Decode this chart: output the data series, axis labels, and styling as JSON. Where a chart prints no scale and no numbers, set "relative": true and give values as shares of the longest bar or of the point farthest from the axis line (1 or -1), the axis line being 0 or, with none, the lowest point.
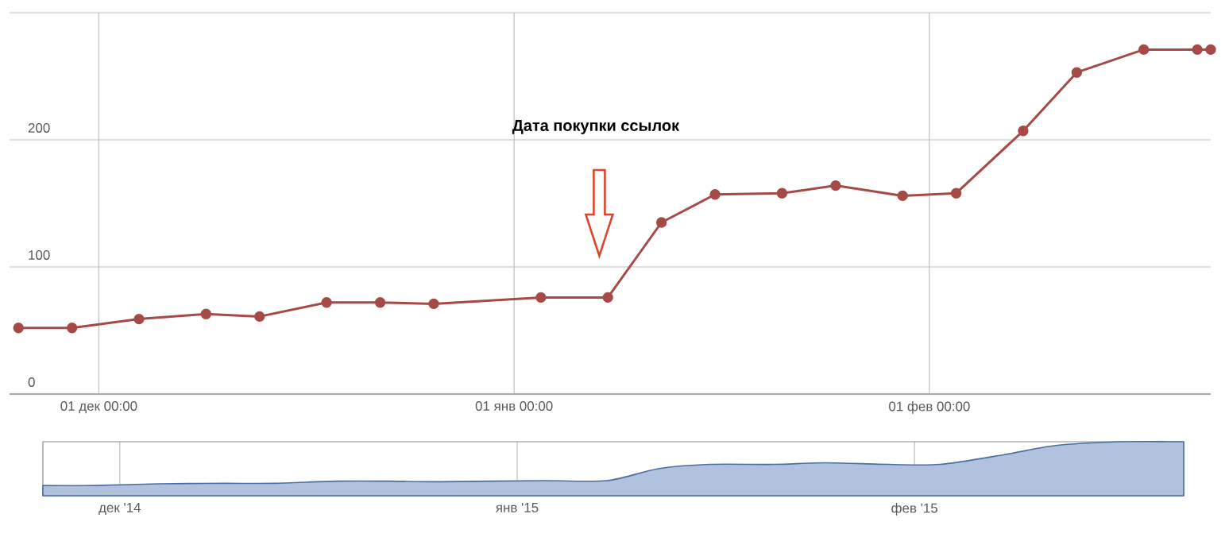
{
  "chart_data": [
    {
      "type": "line",
      "color": "#a54a46",
      "marker": "circle",
      "grid": true,
      "x": [
        "2014-11-25",
        "2014-11-29",
        "2014-12-04",
        "2014-12-09",
        "2014-12-13",
        "2014-12-18",
        "2014-12-22",
        "2014-12-26",
        "2015-01-03",
        "2015-01-08",
        "2015-01-12",
        "2015-01-16",
        "2015-01-21",
        "2015-01-25",
        "2015-01-30",
        "2015-02-03",
        "2015-02-08",
        "2015-02-12",
        "2015-02-17",
        "2015-02-21",
        "2015-02-22"
      ],
      "values": [
        52,
        52,
        59,
        63,
        61,
        72,
        72,
        71,
        76,
        76,
        135,
        157,
        158,
        164,
        156,
        158,
        207,
        253,
        271,
        271,
        271
      ],
      "xlim": [
        "2014-11-24T08:00",
        "2015-02-22"
      ],
      "xticks": [
        {
          "value": "2014-12-01",
          "label": "01 дек 00:00"
        },
        {
          "value": "2015-01-01",
          "label": "01 янв 00:00"
        },
        {
          "value": "2015-02-01",
          "label": "01 фев 00:00"
        }
      ],
      "ylim": [
        0,
        300
      ],
      "yticks": [
        0,
        100,
        200,
        {
          "value": 300,
          "label": null
        }
      ],
      "annotations": [
        "Дата покупки ссылок"
      ]
    },
    {
      "type": "area",
      "color": "#4a6fa5",
      "relative": true,
      "grid": "x",
      "tick_labels": "x",
      "x": [
        "2014-11-25",
        "2014-11-29",
        "2014-12-04",
        "2014-12-09",
        "2014-12-13",
        "2014-12-18",
        "2014-12-22",
        "2014-12-26",
        "2015-01-03",
        "2015-01-08",
        "2015-01-12",
        "2015-01-16",
        "2015-01-21",
        "2015-01-25",
        "2015-01-30",
        "2015-02-03",
        "2015-02-08",
        "2015-02-12",
        "2015-02-17",
        "2015-02-21",
        "2015-02-22"
      ],
      "values": [
        0.19,
        0.19,
        0.22,
        0.23,
        0.23,
        0.27,
        0.27,
        0.26,
        0.28,
        0.28,
        0.5,
        0.58,
        0.58,
        0.61,
        0.58,
        0.58,
        0.76,
        0.93,
        1,
        1,
        1
      ],
      "xlim": [
        "2014-11-25",
        "2015-02-22"
      ],
      "xticks": [
        {
          "value": "2014-12-01",
          "label": "дек '14"
        },
        {
          "value": "2015-01-01",
          "label": "янв '15"
        },
        {
          "value": "2015-02-01",
          "label": "фев '15"
        }
      ]
    }
  ]
}
